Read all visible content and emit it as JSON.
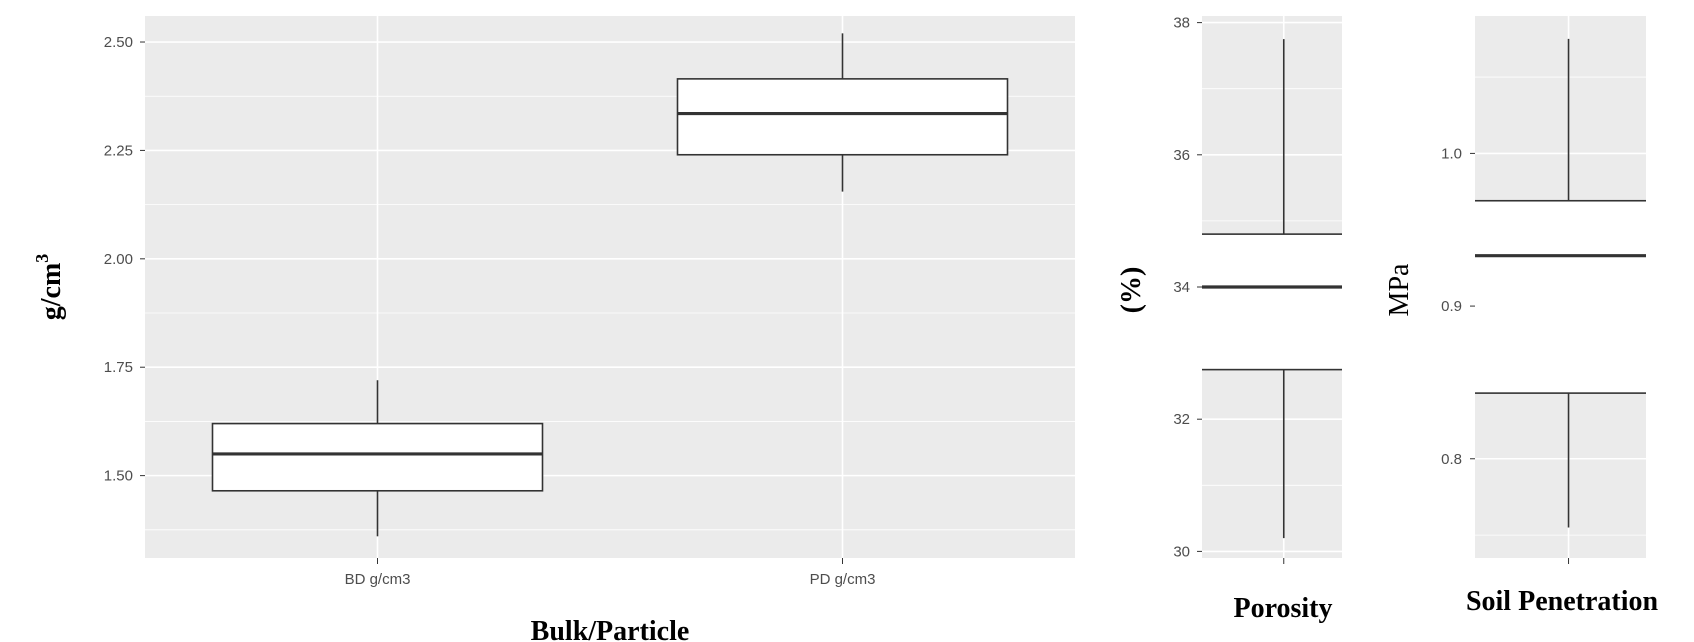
{
  "chart_data": [
    {
      "type": "box",
      "categories": [
        "BD g/cm3",
        "PD g/cm3"
      ],
      "boxes": [
        {
          "category": "BD g/cm3",
          "whisker_low": 1.36,
          "q1": 1.465,
          "median": 1.55,
          "q3": 1.62,
          "whisker_high": 1.72
        },
        {
          "category": "PD g/cm3",
          "whisker_low": 2.155,
          "q1": 2.24,
          "median": 2.335,
          "q3": 2.415,
          "whisker_high": 2.52
        }
      ],
      "xlabel": "Bulk/Particle",
      "ylabel_base": "g/cm",
      "ylabel_sup": "3",
      "y_ticks": [
        "1.50",
        "1.75",
        "2.00",
        "2.25",
        "2.50"
      ],
      "ylim": [
        1.31,
        2.56
      ],
      "grid": true
    },
    {
      "type": "box",
      "categories": [
        ""
      ],
      "boxes": [
        {
          "category": "",
          "whisker_low": 30.2,
          "q1": 32.75,
          "median": 34.0,
          "q3": 34.8,
          "whisker_high": 37.75
        }
      ],
      "xlabel": "Porosity",
      "ylabel": "(%)",
      "y_ticks": [
        "30",
        "32",
        "34",
        "36",
        "38"
      ],
      "ylim": [
        29.9,
        38.1
      ],
      "grid": true
    },
    {
      "type": "box",
      "categories": [
        ""
      ],
      "boxes": [
        {
          "category": "",
          "whisker_low": 0.755,
          "q1": 0.843,
          "median": 0.933,
          "q3": 0.969,
          "whisker_high": 1.075
        }
      ],
      "xlabel": "Soil Penetration",
      "ylabel": "MPa",
      "y_ticks": [
        "0.8",
        "0.9",
        "1.0"
      ],
      "ylim": [
        0.735,
        1.09
      ],
      "grid": true
    }
  ],
  "colors": {
    "panel_bg": "#ebebeb",
    "grid": "#ffffff",
    "box_fill": "#ffffff",
    "box_stroke": "#333333",
    "tick_text": "#4d4d4d"
  }
}
